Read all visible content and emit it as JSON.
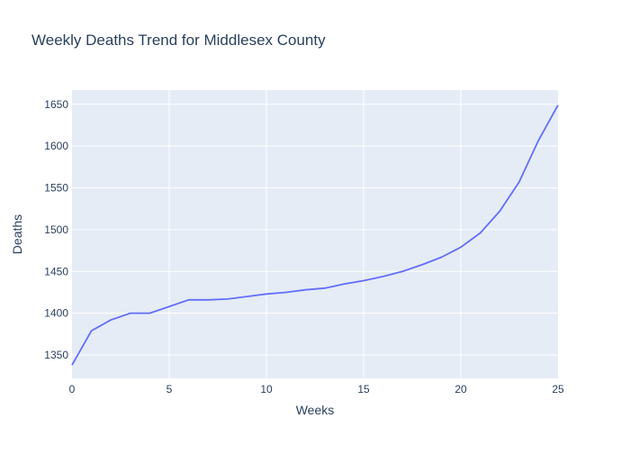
{
  "chart_data": {
    "type": "line",
    "title": "Weekly Deaths Trend for Middlesex County",
    "xlabel": "Weeks",
    "ylabel": "Deaths",
    "xlim": [
      0,
      25
    ],
    "ylim": [
      1322,
      1667
    ],
    "xticks": [
      0,
      5,
      10,
      15,
      20,
      25
    ],
    "yticks": [
      1350,
      1400,
      1450,
      1500,
      1550,
      1600,
      1650
    ],
    "grid": true,
    "series": [
      {
        "x": [
          0,
          1,
          2,
          3,
          4,
          5,
          6,
          7,
          8,
          9,
          10,
          11,
          12,
          13,
          14,
          15,
          16,
          17,
          18,
          19,
          20,
          21,
          22,
          23,
          24,
          25
        ],
        "values": [
          1338,
          1379,
          1392,
          1400,
          1400,
          1408,
          1416,
          1416,
          1417,
          1420,
          1423,
          1425,
          1428,
          1430,
          1435,
          1439,
          1444,
          1450,
          1458,
          1467,
          1479,
          1496,
          1522,
          1557,
          1607,
          1649
        ]
      }
    ]
  },
  "colors": {
    "plot_bg": "#e5ecf6",
    "grid": "#ffffff",
    "line": "#636efa",
    "text": "#2a3f5f"
  }
}
